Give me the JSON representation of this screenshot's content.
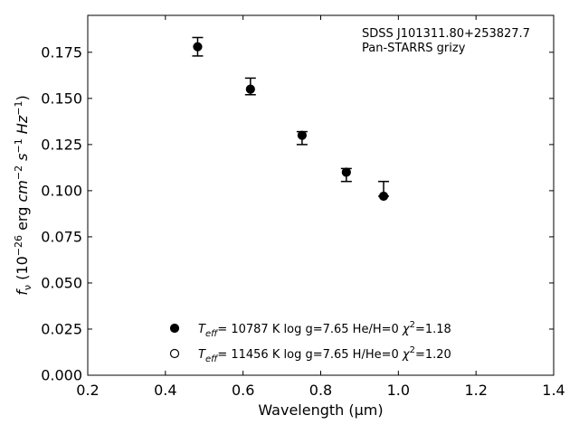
{
  "chart_data": {
    "type": "scatter",
    "xlabel": "Wavelength (μm)",
    "ylabel_parts": [
      "f",
      "ν",
      " (10",
      "−26",
      " erg ",
      "cm",
      "−2",
      " s",
      "−1",
      " Hz",
      "−1",
      ")"
    ],
    "xlim": [
      0.2,
      1.4
    ],
    "ylim": [
      0.0,
      0.195
    ],
    "x_ticks": [
      0.2,
      0.4,
      0.6,
      0.8,
      1.0,
      1.2,
      1.4
    ],
    "x_tick_labels": [
      "0.2",
      "0.4",
      "0.6",
      "0.8",
      "1.0",
      "1.2",
      "1.4"
    ],
    "y_ticks": [
      0.0,
      0.025,
      0.05,
      0.075,
      0.1,
      0.125,
      0.15,
      0.175
    ],
    "y_tick_labels": [
      "0.000",
      "0.025",
      "0.050",
      "0.075",
      "0.100",
      "0.125",
      "0.150",
      "0.175"
    ],
    "grid": false,
    "annotations": [
      "SDSS J101311.80+253827.7",
      "Pan-STARRS grizy"
    ],
    "observed": {
      "x": [
        0.483,
        0.619,
        0.752,
        0.866,
        0.962
      ],
      "y_low": [
        0.173,
        0.152,
        0.125,
        0.105,
        0.097
      ],
      "y_high": [
        0.183,
        0.161,
        0.132,
        0.112,
        0.105
      ]
    },
    "series": [
      {
        "marker": "filled",
        "x": [
          0.483,
          0.619,
          0.752,
          0.866,
          0.962
        ],
        "y": [
          0.178,
          0.155,
          0.13,
          0.11,
          0.097
        ]
      },
      {
        "marker": "open",
        "x": [],
        "y": []
      }
    ],
    "legend": [
      {
        "marker": "filled",
        "parts": [
          {
            "t": "T",
            "s": "it"
          },
          {
            "t": "eff",
            "s": "sub-it"
          },
          {
            "t": "= 10787 K  log g=7.65  He/H=0  ",
            "s": ""
          },
          {
            "t": "χ",
            "s": "it"
          },
          {
            "t": "2",
            "s": "sup"
          },
          {
            "t": "=1.18",
            "s": ""
          }
        ]
      },
      {
        "marker": "open",
        "parts": [
          {
            "t": "T",
            "s": "it"
          },
          {
            "t": "eff",
            "s": "sub-it"
          },
          {
            "t": "= 11456 K  log g=7.65  H/He=0  ",
            "s": ""
          },
          {
            "t": "χ",
            "s": "it"
          },
          {
            "t": "2",
            "s": "sup"
          },
          {
            "t": "=1.20",
            "s": ""
          }
        ]
      }
    ],
    "legend_position": "lower-center"
  }
}
